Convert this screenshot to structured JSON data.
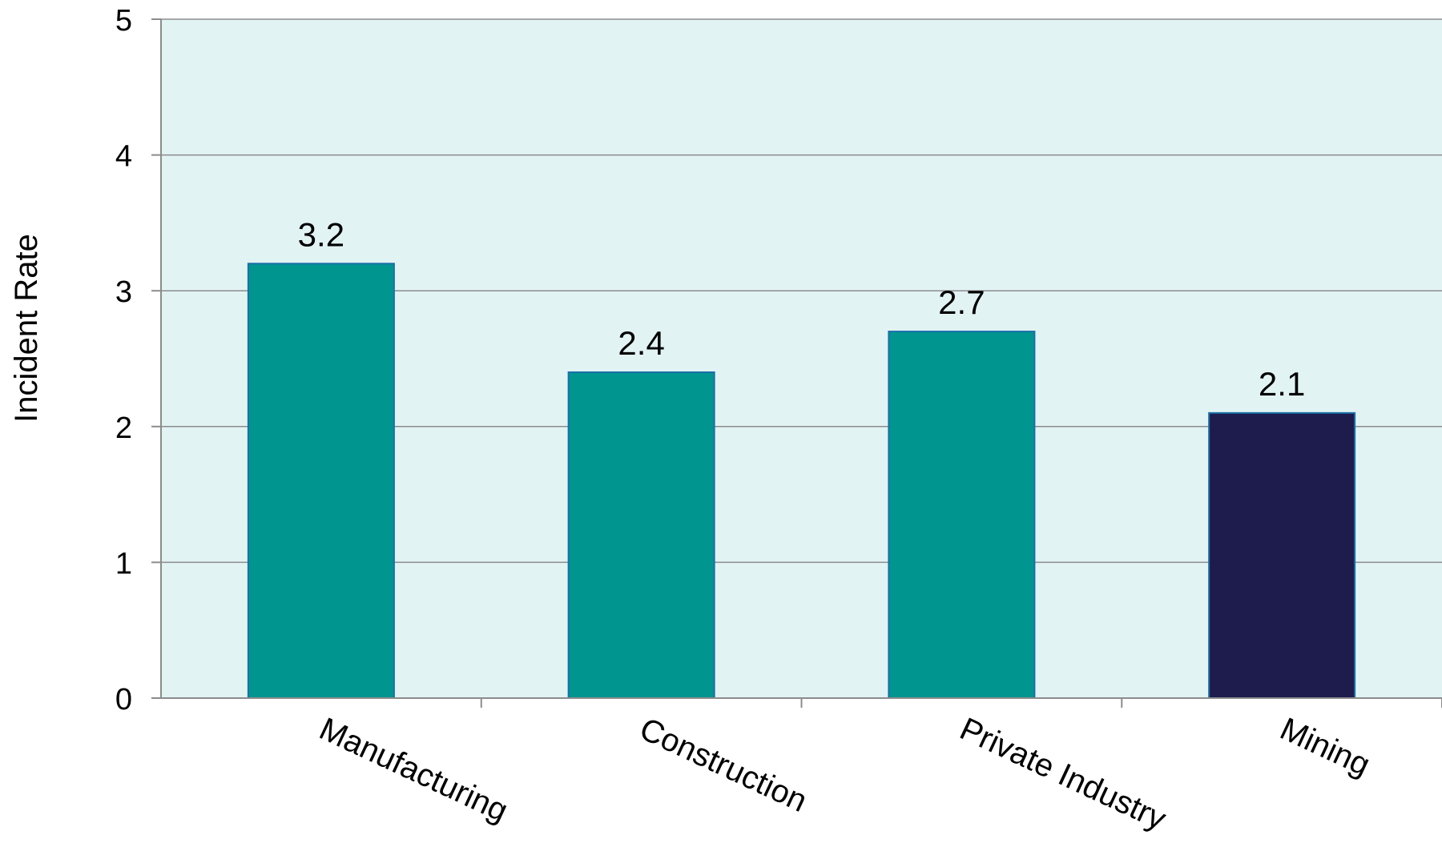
{
  "chart_data": {
    "type": "bar",
    "title": "",
    "xlabel": "",
    "ylabel": "Incident Rate",
    "categories": [
      "Manufacturing",
      "Construction",
      "Private Industry",
      "Mining"
    ],
    "values": [
      3.2,
      2.4,
      2.7,
      2.1
    ],
    "value_labels": [
      "3.2",
      "2.4",
      "2.7",
      "2.1"
    ],
    "bar_colors": [
      "#00958F",
      "#00958F",
      "#00958F",
      "#1E1B4D"
    ],
    "bar_border_color": "#1A6FA8",
    "ylim": [
      0,
      5
    ],
    "yticks": [
      0,
      1,
      2,
      3,
      4,
      5
    ],
    "ytick_labels": [
      "0",
      "1",
      "2",
      "3",
      "4",
      "5"
    ],
    "grid": true,
    "plot_background": "#E2F3F4",
    "gridline_color": "#8C8C8C",
    "axis_color": "#8C8C8C",
    "legend": "none"
  }
}
